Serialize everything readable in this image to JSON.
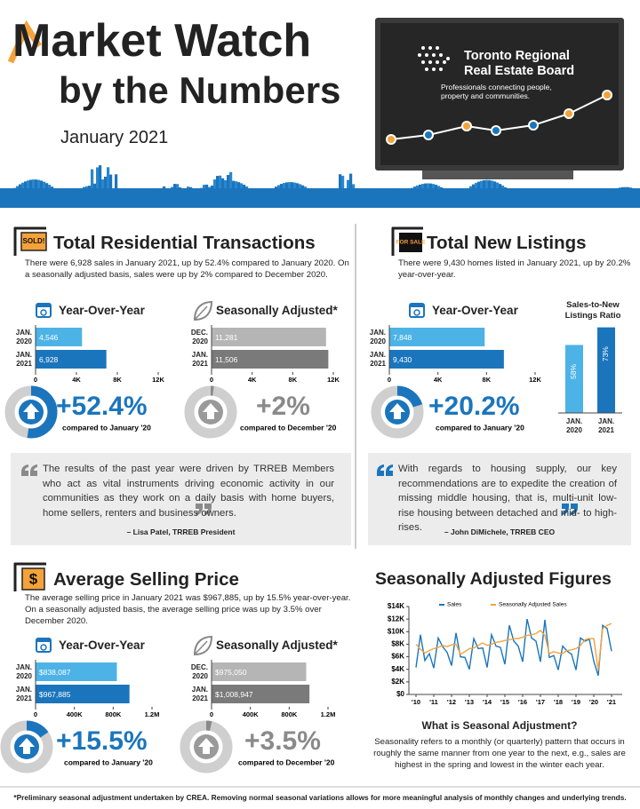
{
  "header": {
    "title_line1": "Market Watch",
    "title_line2": "by the Numbers",
    "date": "January 2021",
    "org_name_line1": "Toronto Regional",
    "org_name_line2": "Real Estate Board",
    "org_tagline_line1": "Professionals connecting people,",
    "org_tagline_line2": "property and communities."
  },
  "transactions": {
    "badge": "SOLD!",
    "title": "Total Residential Transactions",
    "description": "There were 6,928 sales in January 2021, up by 52.4% compared to January 2020. On a seasonally adjusted basis, sales were up by 2% compared to December 2020.",
    "yoy_chart": {
      "type": "bar",
      "title": "Year-Over-Year",
      "categories": [
        "JAN. 2020",
        "JAN. 2021"
      ],
      "values": [
        4546,
        6928
      ],
      "value_labels": [
        "4,546",
        "6,928"
      ],
      "colors": [
        "#4db3e6",
        "#1b75bc"
      ],
      "xlim": [
        0,
        12000
      ],
      "xticks": [
        0,
        {
          "value": 4000,
          "label": "4K"
        },
        {
          "value": 8000,
          "label": "8K"
        },
        {
          "value": 12000,
          "label": "12K"
        }
      ]
    },
    "sa_chart": {
      "type": "bar",
      "title": "Seasonally Adjusted*",
      "categories": [
        "DEC. 2020",
        "JAN. 2021"
      ],
      "values": [
        11281,
        11506
      ],
      "value_labels": [
        "11,281",
        "11,506"
      ],
      "colors": [
        "#b5b5b5",
        "#7a7a7a"
      ],
      "xlim": [
        0,
        12000
      ],
      "xticks": [
        0,
        {
          "value": 4000,
          "label": "4K"
        },
        {
          "value": 8000,
          "label": "8K"
        },
        {
          "value": 12000,
          "label": "12K"
        }
      ]
    },
    "yoy_change": {
      "value": 52.4,
      "label": "+52.4%",
      "caption": "compared to January '20",
      "color": "#1b75bc"
    },
    "sa_change": {
      "value": 2,
      "label": "+2%",
      "caption": "compared to December '20",
      "color": "#8a8a8a"
    },
    "quote": {
      "text": "The results of the past year were driven by TRREB Members who act as vital instruments driving economic activity in our communities as they work on a daily basis with home buyers, home sellers, renters and business owners.",
      "attribution": "– Lisa Patel, TRREB President"
    }
  },
  "listings": {
    "badge": "FOR SALE",
    "title": "Total New Listings",
    "description": "There were 9,430 homes listed in January 2021, up by 20.2% year-over-year.",
    "yoy_chart": {
      "type": "bar",
      "title": "Year-Over-Year",
      "categories": [
        "JAN. 2020",
        "JAN. 2021"
      ],
      "values": [
        7848,
        9430
      ],
      "value_labels": [
        "7,848",
        "9,430"
      ],
      "colors": [
        "#4db3e6",
        "#1b75bc"
      ],
      "xlim": [
        0,
        12000
      ],
      "xticks": [
        0,
        {
          "value": 4000,
          "label": "4K"
        },
        {
          "value": 8000,
          "label": "8K"
        },
        {
          "value": 12000,
          "label": "12K"
        }
      ]
    },
    "ratio_chart": {
      "type": "bar",
      "title": "Sales-to-New Listings Ratio",
      "categories": [
        "JAN. 2020",
        "JAN. 2021"
      ],
      "values": [
        58,
        73
      ],
      "value_labels": [
        "58%",
        "73%"
      ],
      "colors": [
        "#4db3e6",
        "#1b75bc"
      ],
      "ylim": [
        0,
        100
      ]
    },
    "yoy_change": {
      "value": 20.2,
      "label": "+20.2%",
      "caption": "compared to January '20",
      "color": "#1b75bc"
    },
    "quote": {
      "text": "With regards to housing supply, our key recommendations are to expedite the creation of missing middle housing, that is, multi-unit low-rise housing between detached and mid- to high-rises.",
      "attribution": "– John DiMichele, TRREB CEO"
    }
  },
  "price": {
    "badge": "$",
    "title": "Average Selling Price",
    "description": "The average selling price in January 2021 was $967,885, up by 15.5% year-over-year. On a seasonally adjusted basis, the average selling price was up by 3.5% over December 2020.",
    "yoy_chart": {
      "type": "bar",
      "title": "Year-Over-Year",
      "categories": [
        "JAN. 2020",
        "JAN. 2021"
      ],
      "values": [
        838087,
        967885
      ],
      "value_labels": [
        "$838,087",
        "$967,885"
      ],
      "colors": [
        "#4db3e6",
        "#1b75bc"
      ],
      "xlim": [
        0,
        1200000
      ],
      "xticks": [
        0,
        {
          "value": 400000,
          "label": "400K"
        },
        {
          "value": 800000,
          "label": "800K"
        },
        {
          "value": 1200000,
          "label": "1.2M"
        }
      ]
    },
    "sa_chart": {
      "type": "bar",
      "title": "Seasonally Adjusted*",
      "categories": [
        "DEC. 2020",
        "JAN. 2021"
      ],
      "values": [
        975050,
        1008947
      ],
      "value_labels": [
        "$975,050",
        "$1,008,947"
      ],
      "colors": [
        "#b5b5b5",
        "#7a7a7a"
      ],
      "xlim": [
        0,
        1200000
      ],
      "xticks": [
        0,
        {
          "value": 400000,
          "label": "400K"
        },
        {
          "value": 800000,
          "label": "800K"
        },
        {
          "value": 1200000,
          "label": "1.2M"
        }
      ]
    },
    "yoy_change": {
      "value": 15.5,
      "label": "+15.5%",
      "caption": "compared to January '20",
      "color": "#1b75bc"
    },
    "sa_change": {
      "value": 3.5,
      "label": "+3.5%",
      "caption": "compared to December '20",
      "color": "#8a8a8a"
    }
  },
  "sa_figures": {
    "type": "line",
    "title": "Seasonally Adjusted Figures",
    "x": [
      2010,
      2010.25,
      2010.5,
      2010.75,
      2011,
      2011.25,
      2011.5,
      2011.75,
      2012,
      2012.25,
      2012.5,
      2012.75,
      2013,
      2013.25,
      2013.5,
      2013.75,
      2014,
      2014.25,
      2014.5,
      2014.75,
      2015,
      2015.25,
      2015.5,
      2015.75,
      2016,
      2016.25,
      2016.5,
      2016.75,
      2017,
      2017.25,
      2017.5,
      2017.75,
      2018,
      2018.25,
      2018.5,
      2018.75,
      2019,
      2019.25,
      2019.5,
      2019.75,
      2020,
      2020.25,
      2020.5,
      2020.75,
      2021
    ],
    "series": [
      {
        "name": "Sales",
        "color": "#1b75bc",
        "values": [
          4300,
          9500,
          5400,
          6500,
          4200,
          9000,
          7600,
          6700,
          4600,
          9800,
          6000,
          5900,
          4000,
          8900,
          7300,
          7400,
          4300,
          9500,
          7700,
          7500,
          4800,
          11000,
          8500,
          7700,
          5200,
          12000,
          9000,
          8500,
          5200,
          11900,
          5900,
          6200,
          3900,
          7700,
          6900,
          6400,
          3900,
          9000,
          8500,
          8800,
          5300,
          3000,
          11000,
          10500,
          6900
        ]
      },
      {
        "name": "Seasonally Adjusted Sales",
        "color": "#f5a23a",
        "values": [
          8000,
          7200,
          6600,
          7000,
          7300,
          7500,
          7800,
          7600,
          7900,
          8000,
          6400,
          6800,
          7300,
          7400,
          7800,
          8200,
          7800,
          8000,
          8300,
          8400,
          8600,
          8700,
          8900,
          8900,
          9100,
          9400,
          9500,
          9700,
          10200,
          9400,
          6500,
          6800,
          6600,
          6500,
          7000,
          7100,
          7300,
          7800,
          8700,
          8900,
          8900,
          3900,
          10500,
          11000,
          11300
        ]
      }
    ],
    "xlim": [
      2009.6,
      2021.6
    ],
    "xticks": [
      {
        "value": 2010,
        "label": "'10"
      },
      {
        "value": 2011,
        "label": "'11"
      },
      {
        "value": 2012,
        "label": "'12"
      },
      {
        "value": 2013,
        "label": "'13"
      },
      {
        "value": 2014,
        "label": "'14"
      },
      {
        "value": 2015,
        "label": "'15"
      },
      {
        "value": 2016,
        "label": "'16"
      },
      {
        "value": 2017,
        "label": "'17"
      },
      {
        "value": 2018,
        "label": "'18"
      },
      {
        "value": 2019,
        "label": "'19"
      },
      {
        "value": 2020,
        "label": "'20"
      },
      {
        "value": 2021,
        "label": "'21"
      }
    ],
    "ylim": [
      0,
      14000
    ],
    "yticks": [
      {
        "value": 0,
        "label": "$0"
      },
      {
        "value": 2000,
        "label": "$2K"
      },
      {
        "value": 4000,
        "label": "$4K"
      },
      {
        "value": 6000,
        "label": "$6K"
      },
      {
        "value": 8000,
        "label": "$8K"
      },
      {
        "value": 10000,
        "label": "$10K"
      },
      {
        "value": 12000,
        "label": "$12K"
      },
      {
        "value": 14000,
        "label": "$14K"
      }
    ]
  },
  "explainer": {
    "title": "What is Seasonal Adjustment?",
    "text": "Seasonality refers to a monthly (or quarterly) pattern that occurs in roughly the same manner from one year to the next, e.g., sales are highest in the spring and lowest in the winter each year."
  },
  "footnote": "*Preliminary seasonal adjustment undertaken by CREA. Removing normal seasonal variations allows for more meaningful analysis of monthly changes and underlying trends."
}
